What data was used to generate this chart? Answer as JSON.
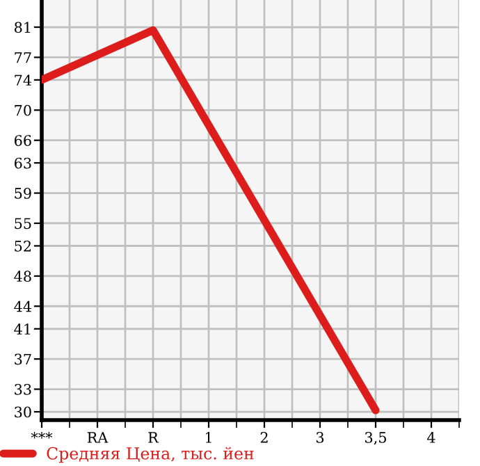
{
  "chart_data": {
    "type": "line",
    "categories": [
      "***",
      "RA",
      "R",
      "1",
      "2",
      "3",
      "3,5",
      "4"
    ],
    "series": [
      {
        "name": "Средняя Цена, тыс. йен",
        "color": "#dd1c1c",
        "values": [
          74,
          null,
          80.6,
          null,
          null,
          null,
          30.2,
          null
        ]
      }
    ],
    "ylim": [
      28.9,
      84.6
    ],
    "yticks": [
      30,
      33,
      37,
      41,
      44,
      48,
      52,
      55,
      59,
      63,
      66,
      70,
      74,
      77,
      81
    ],
    "grid": true,
    "legend": "bottom left",
    "marker": "none",
    "line_style": "solid"
  }
}
